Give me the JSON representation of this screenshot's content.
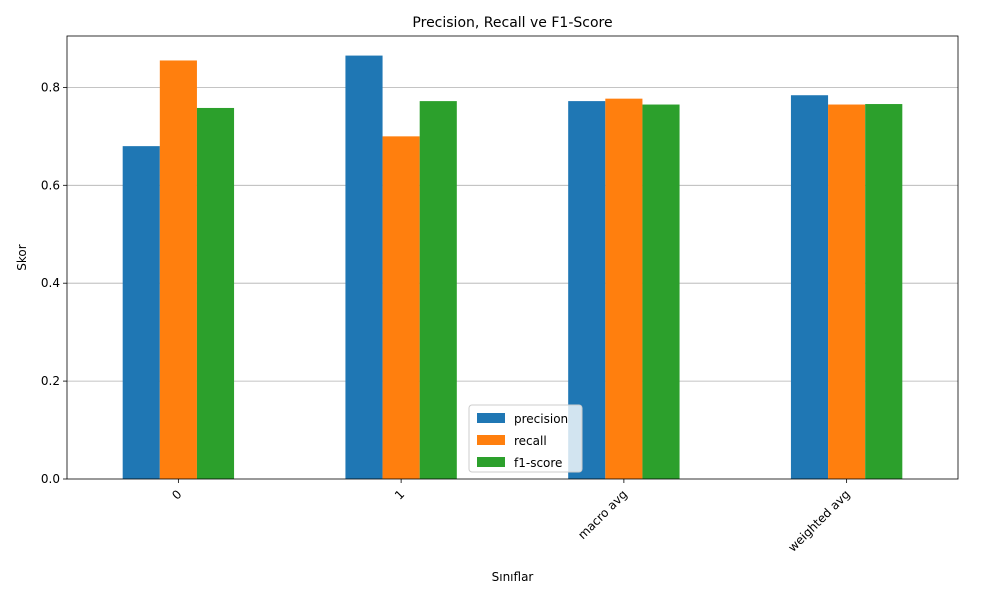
{
  "chart_data": {
    "type": "bar",
    "title": "Precision, Recall ve F1-Score",
    "xlabel": "Sınıflar",
    "ylabel": "Skor",
    "categories": [
      "0",
      "1",
      "macro avg",
      "weighted avg"
    ],
    "series": [
      {
        "name": "precision",
        "color": "#1f77b4",
        "values": [
          0.68,
          0.865,
          0.772,
          0.784
        ]
      },
      {
        "name": "recall",
        "color": "#ff7f0e",
        "values": [
          0.855,
          0.7,
          0.777,
          0.765
        ]
      },
      {
        "name": "f1-score",
        "color": "#2ca02c",
        "values": [
          0.758,
          0.772,
          0.765,
          0.766
        ]
      }
    ],
    "ylim": [
      0,
      0.905
    ],
    "yticks": [
      0.0,
      0.2,
      0.4,
      0.6,
      0.8
    ],
    "ytick_labels": [
      "0.0",
      "0.2",
      "0.4",
      "0.6",
      "0.8"
    ],
    "grid": "y",
    "legend_position": "lower center",
    "xtick_rotation": 45
  }
}
